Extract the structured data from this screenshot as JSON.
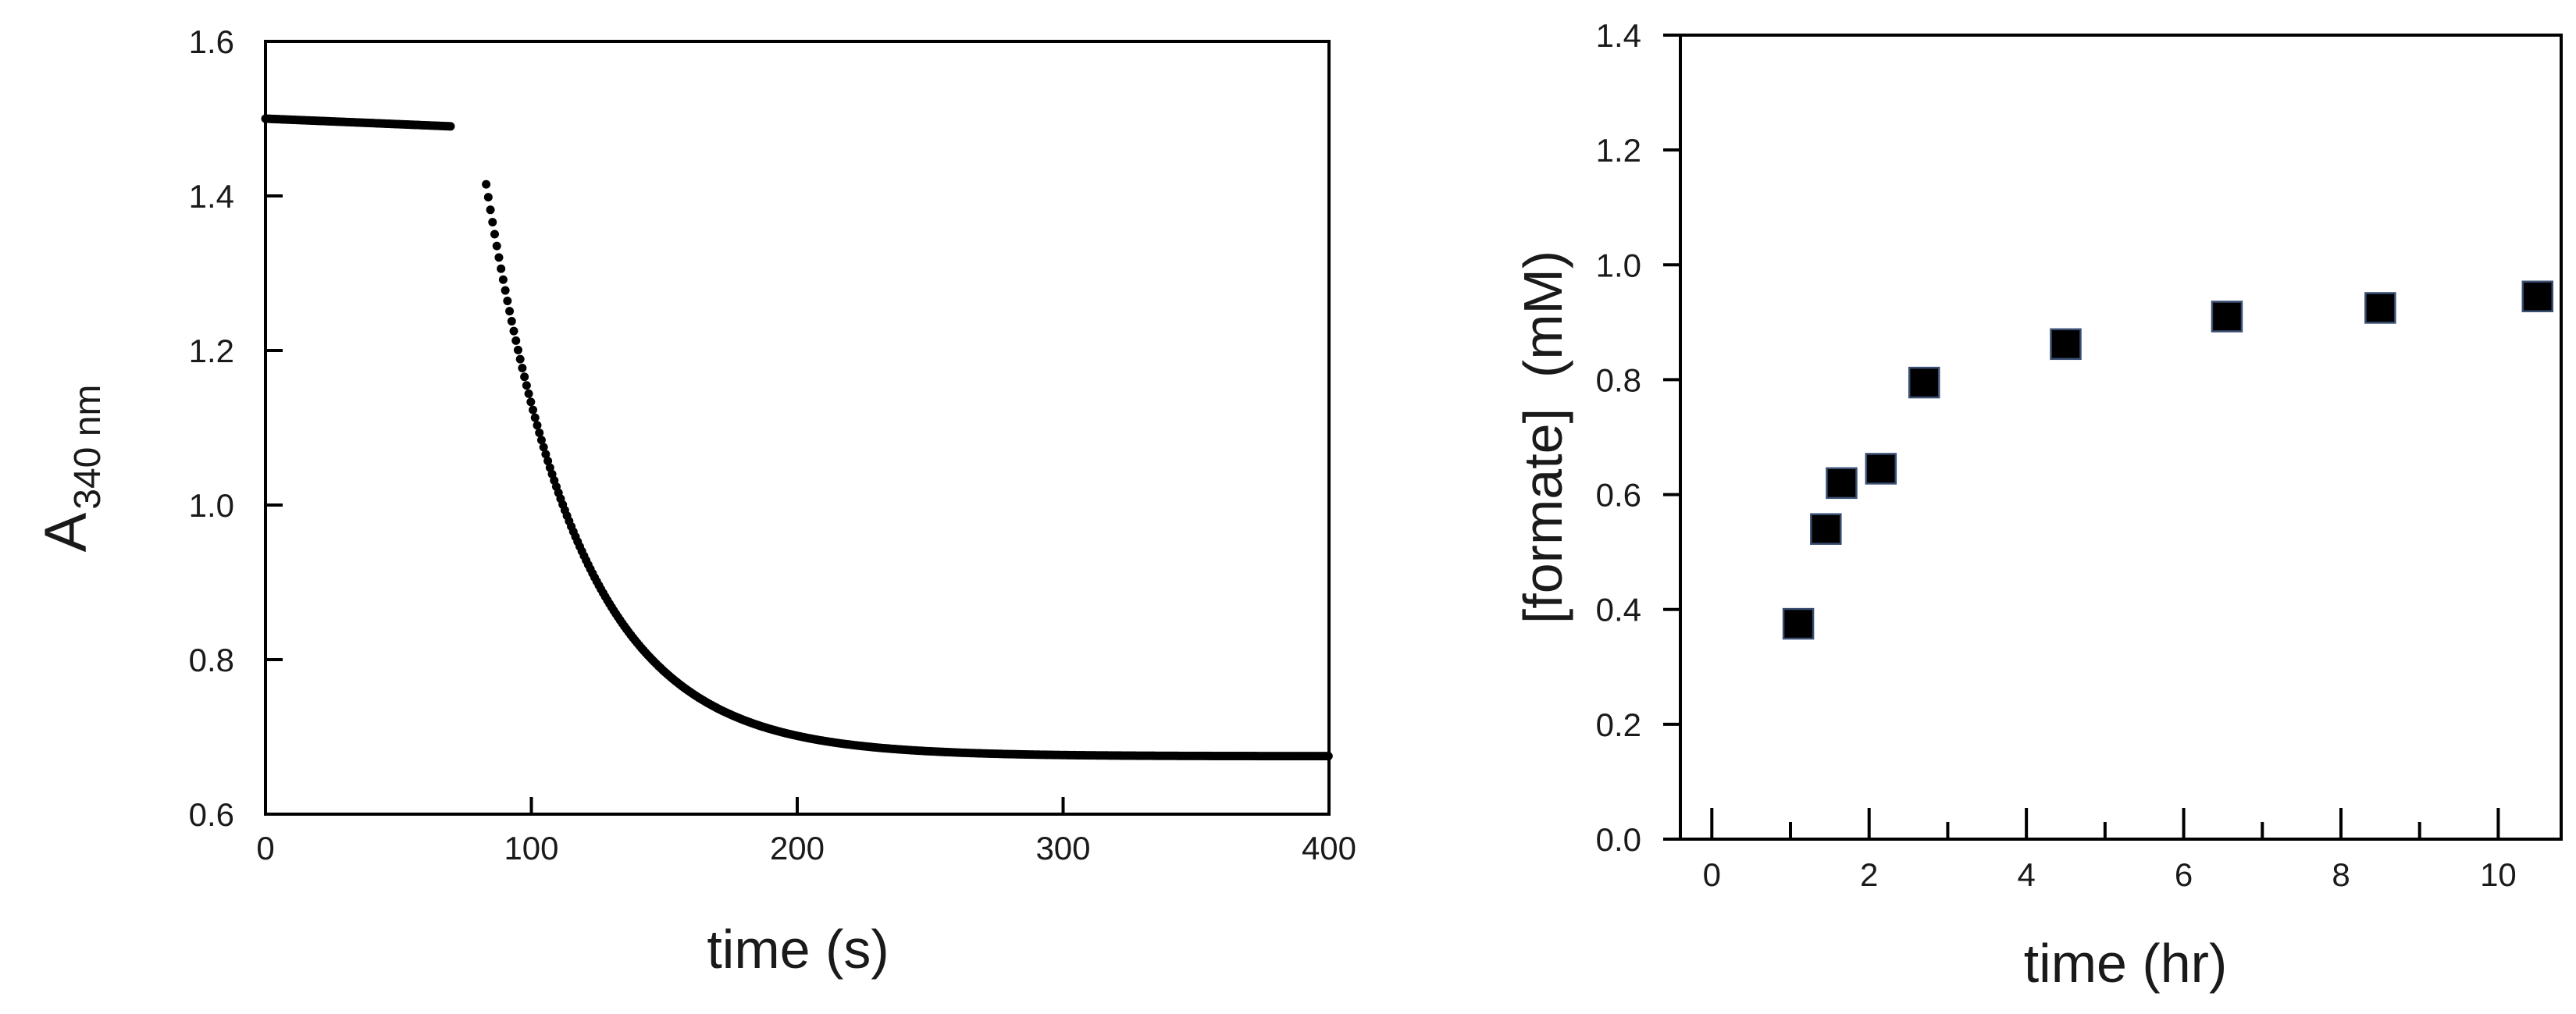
{
  "chart_data": [
    {
      "type": "scatter",
      "xlabel": "time (s)",
      "ylabel_main": "A",
      "ylabel_sub": "340 nm",
      "xlim": [
        0,
        400
      ],
      "ylim": [
        0.6,
        1.6
      ],
      "xticks": [
        0,
        100,
        200,
        300,
        400
      ],
      "yticks": [
        0.6,
        0.8,
        1.0,
        1.2,
        1.4,
        1.6
      ],
      "xtick_labels": [
        "0",
        "100",
        "200",
        "300",
        "400"
      ],
      "ytick_labels": [
        "0.6",
        "0.8",
        "1.0",
        "1.2",
        "1.4",
        "1.6"
      ],
      "grid": false,
      "series": [
        {
          "segments": [
            {
              "model": "linear",
              "x_range": [
                0,
                70
              ],
              "y_start": 1.5,
              "y_end": 1.49
            },
            {
              "model": "exponential_decay",
              "x_range": [
                83,
                400
              ],
              "y_start": 1.415,
              "y_plateau": 0.675,
              "rate_per_s": 0.0285
            }
          ]
        }
      ]
    },
    {
      "type": "scatter",
      "xlabel": "time (hr)",
      "ylabel": "[formate]  (mM)",
      "xlim": [
        -0.4,
        10.8
      ],
      "ylim": [
        0.0,
        1.4
      ],
      "xticks": [
        0,
        2,
        4,
        6,
        8,
        10
      ],
      "yticks": [
        0.0,
        0.2,
        0.4,
        0.6,
        0.8,
        1.0,
        1.2,
        1.4
      ],
      "xtick_labels": [
        "0",
        "2",
        "4",
        "6",
        "8",
        "10"
      ],
      "ytick_labels": [
        "0.0",
        "0.2",
        "0.4",
        "0.6",
        "0.8",
        "1.0",
        "1.2",
        "1.4"
      ],
      "minor_xticks": [
        1,
        3,
        5,
        7,
        9
      ],
      "grid": false,
      "marker": "square",
      "series": [
        {
          "x": [
            1.1,
            1.45,
            1.65,
            2.15,
            2.7,
            4.5,
            6.55,
            8.5,
            10.5
          ],
          "y": [
            0.375,
            0.54,
            0.62,
            0.645,
            0.795,
            0.862,
            0.91,
            0.925,
            0.945
          ]
        }
      ]
    }
  ]
}
